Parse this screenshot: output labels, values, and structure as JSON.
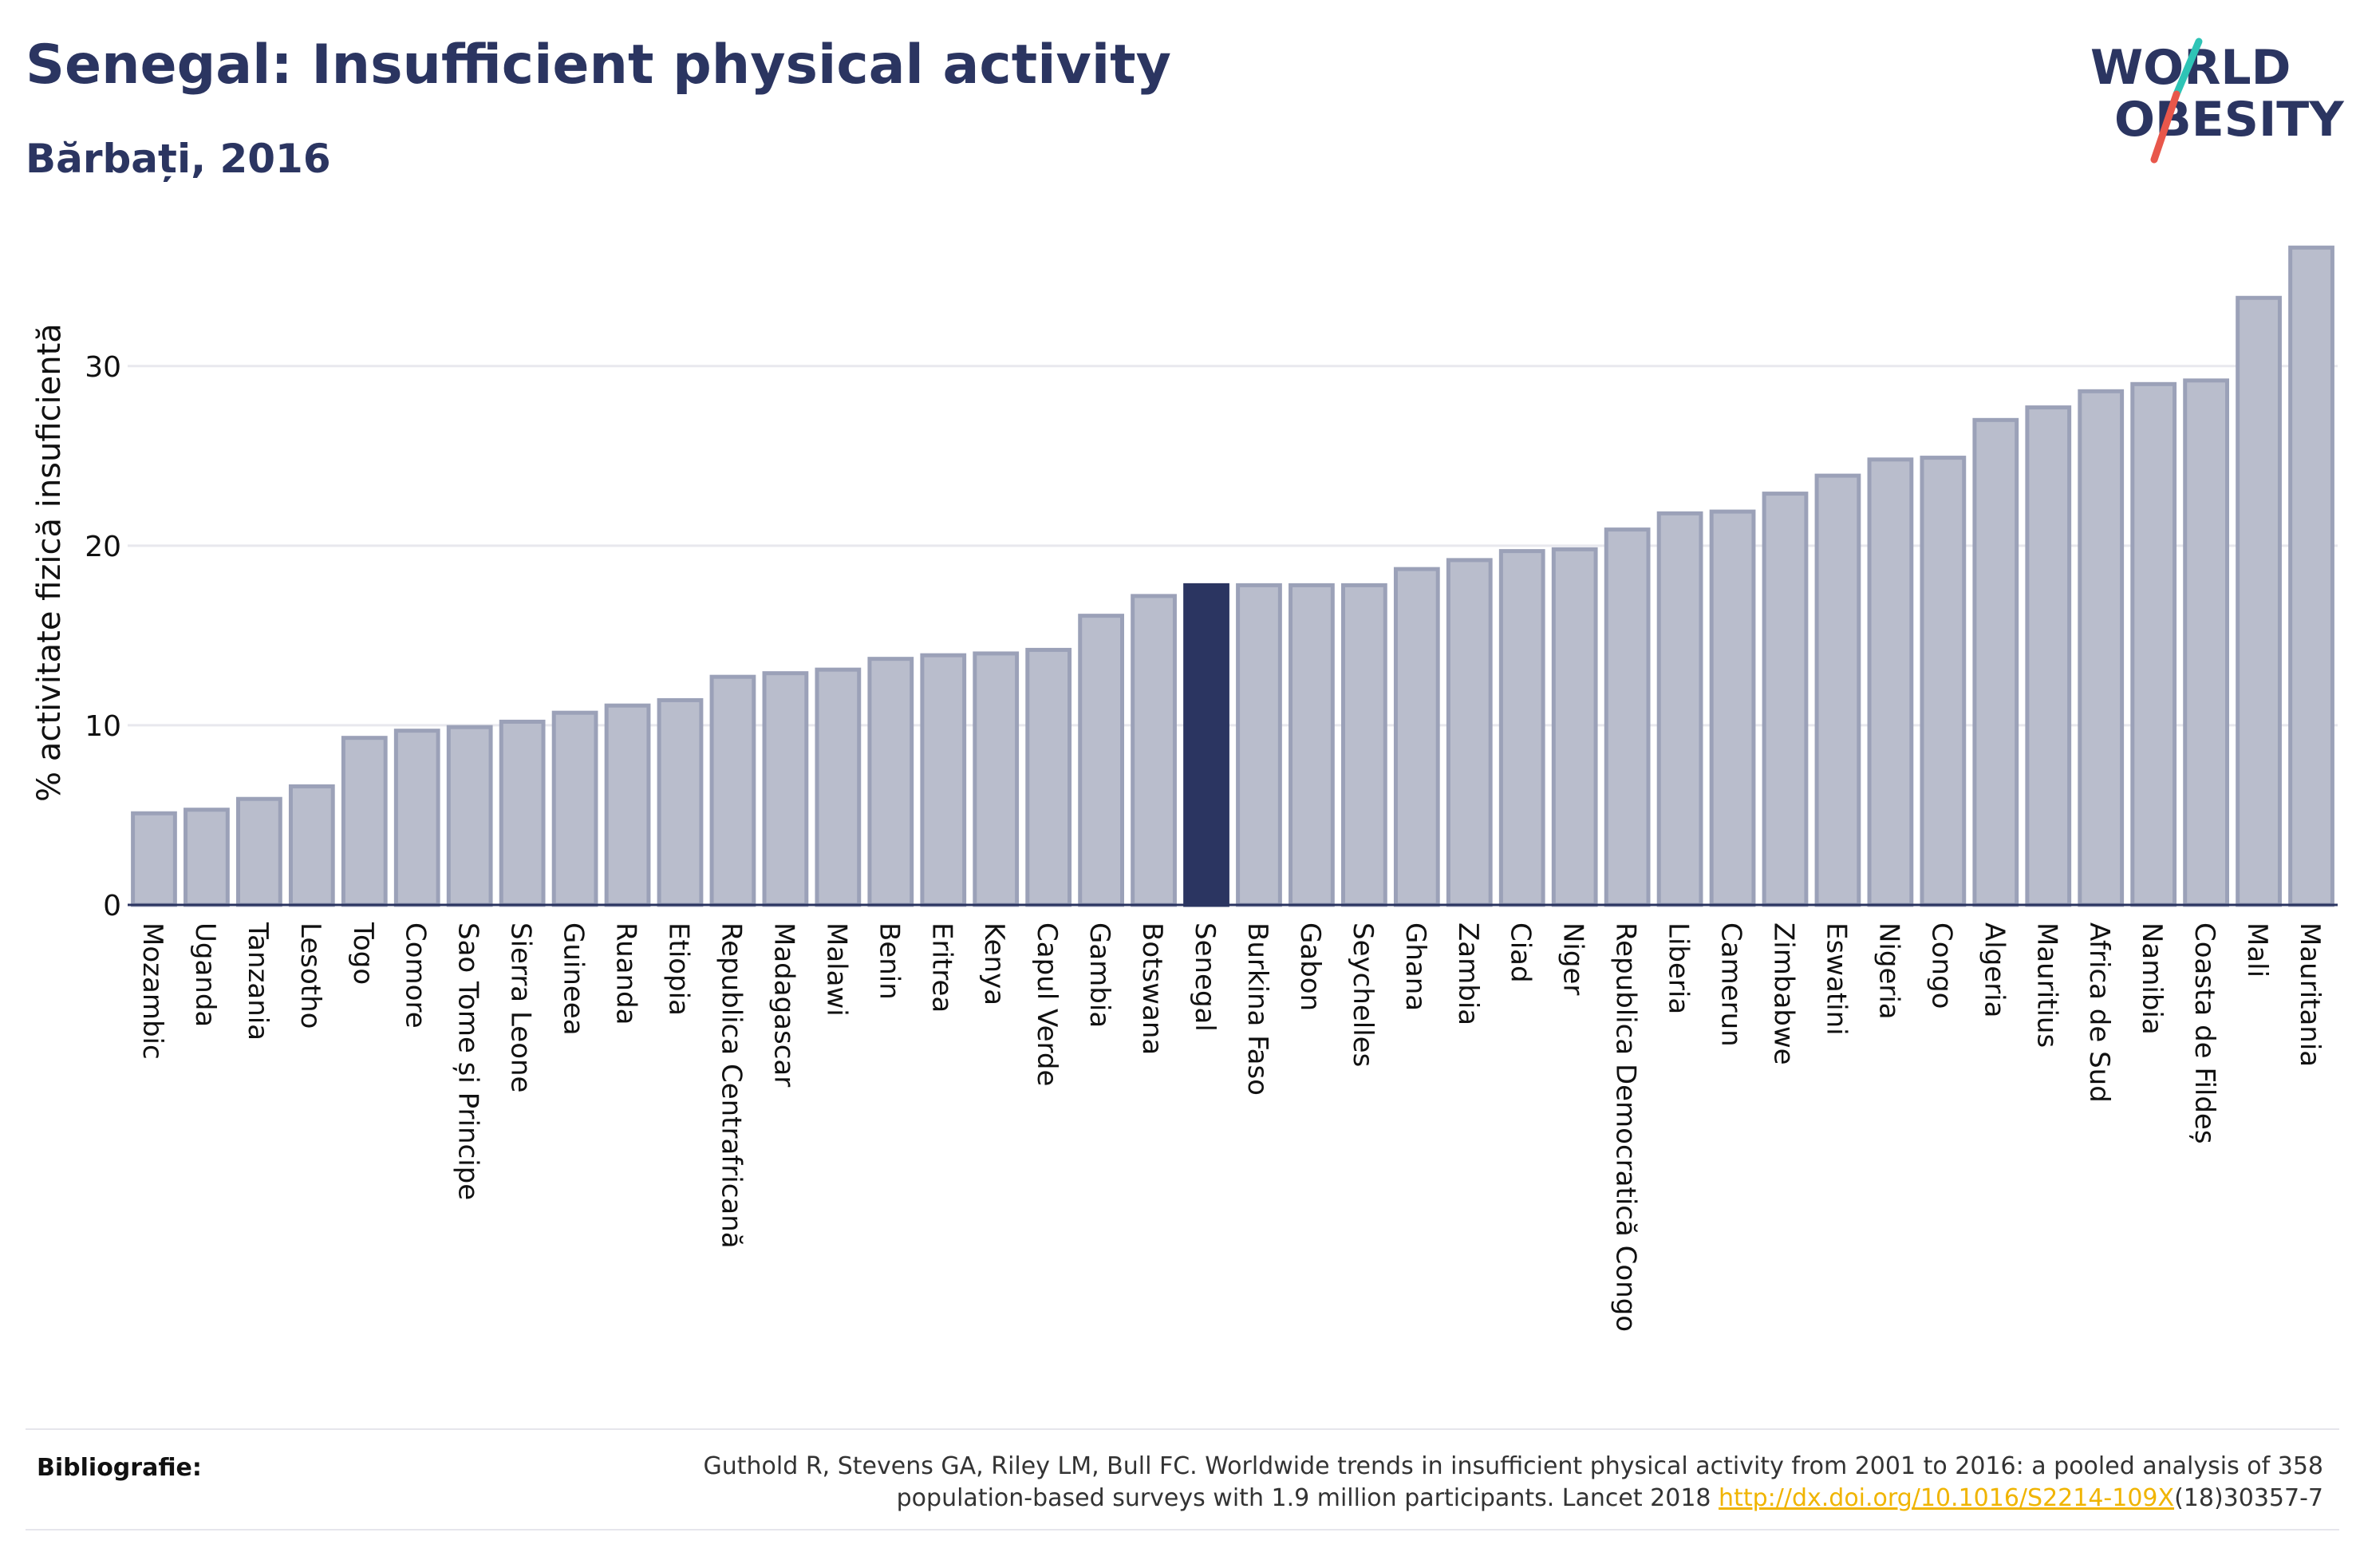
{
  "header": {
    "title": "Senegal: Insufficient physical activity",
    "subtitle": "Bărbați, 2016"
  },
  "logo": {
    "line1": "WORLD",
    "line2": "OBESITY",
    "colors": {
      "text": "#2b3561",
      "slash_red": "#e8574b",
      "slash_teal": "#2ec4b6"
    }
  },
  "chart_data": {
    "type": "bar",
    "ylabel": "% activitate fizică insuficientă",
    "xlabel": "",
    "ylim": [
      0,
      37.5
    ],
    "yticks": [
      0,
      10,
      20,
      30
    ],
    "grid": true,
    "highlight": "Senegal",
    "colors": {
      "bar": "#b9bdcc",
      "bar_border": "#9ba1b8",
      "highlight": "#2b3561",
      "grid": "#e8e8ee",
      "axis": "#2b3561"
    },
    "categories": [
      "Mozambic",
      "Uganda",
      "Tanzania",
      "Lesotho",
      "Togo",
      "Comore",
      "Sao Tome și Principe",
      "Sierra Leone",
      "Guineea",
      "Ruanda",
      "Etiopia",
      "Republica Centrafricană",
      "Madagascar",
      "Malawi",
      "Benin",
      "Eritrea",
      "Kenya",
      "Capul Verde",
      "Gambia",
      "Botswana",
      "Senegal",
      "Burkina Faso",
      "Gabon",
      "Seychelles",
      "Ghana",
      "Zambia",
      "Ciad",
      "Niger",
      "Republica Democratică Congo",
      "Liberia",
      "Camerun",
      "Zimbabwe",
      "Eswatini",
      "Nigeria",
      "Congo",
      "Algeria",
      "Mauritius",
      "Africa de Sud",
      "Namibia",
      "Coasta de Fildeș",
      "Mali",
      "Mauritania"
    ],
    "values": [
      5.1,
      5.3,
      5.9,
      6.6,
      9.3,
      9.7,
      9.9,
      10.2,
      10.7,
      11.1,
      11.4,
      12.7,
      12.9,
      13.1,
      13.7,
      13.9,
      14.0,
      14.2,
      16.1,
      17.2,
      17.8,
      17.8,
      17.8,
      17.8,
      18.7,
      19.2,
      19.7,
      19.8,
      20.9,
      21.8,
      21.9,
      22.9,
      23.9,
      24.8,
      24.9,
      27.0,
      27.7,
      28.6,
      29.0,
      29.2,
      33.8,
      36.6
    ]
  },
  "bibliography": {
    "label": "Bibliografie:",
    "line1": "Guthold R, Stevens GA, Riley LM, Bull FC. Worldwide trends in insufficient physical activity from 2001 to 2016: a pooled analysis of 358",
    "line2_prefix": "population-based surveys with 1.9 million participants. Lancet 2018 ",
    "link": "http://dx.doi.org/10.1016/S2214-109X",
    "line2_suffix": "(18)30357-7"
  }
}
